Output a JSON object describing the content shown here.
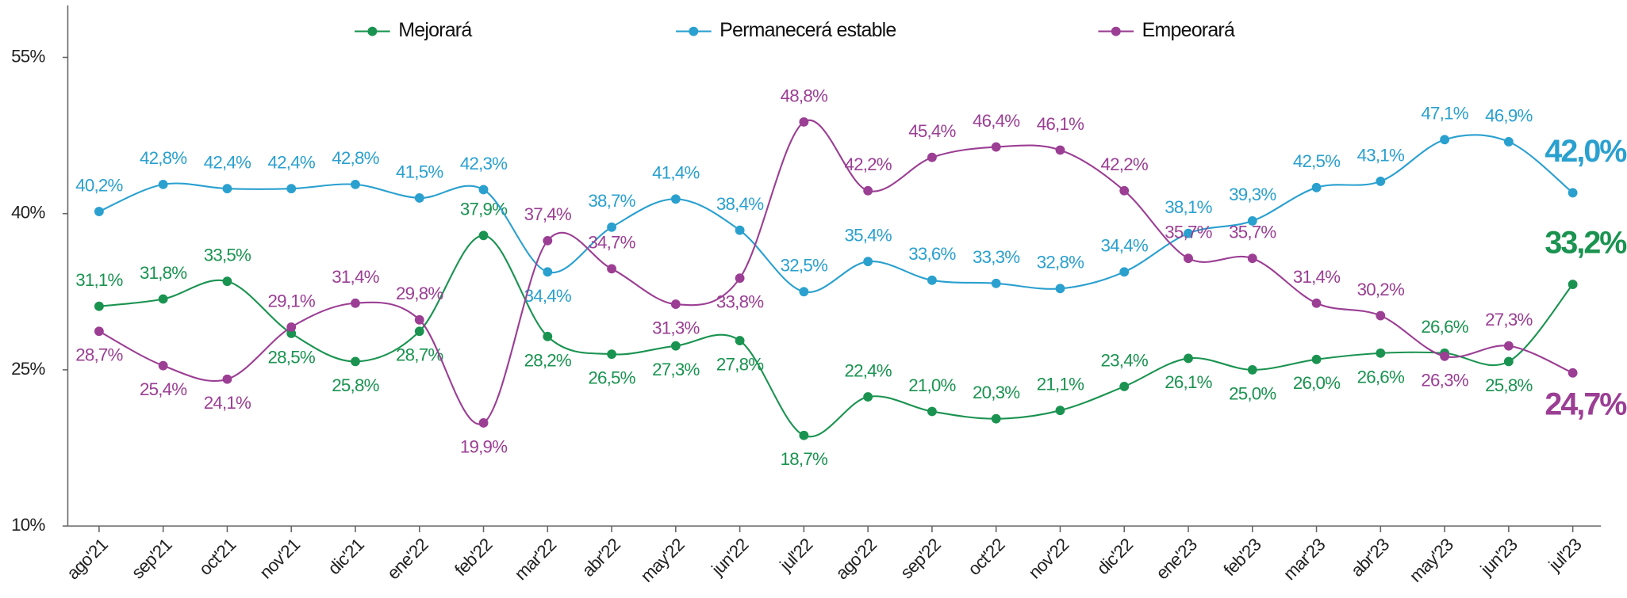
{
  "chart_data": {
    "type": "line",
    "categories": [
      "ago'21",
      "sep'21",
      "oct'21",
      "nov'21",
      "dic'21",
      "ene'22",
      "feb'22",
      "mar'22",
      "abr'22",
      "may'22",
      "jun'22",
      "jul'22",
      "ago'22",
      "sep'22",
      "oct'22",
      "nov'22",
      "dic'22",
      "ene'23",
      "feb'23",
      "mar'23",
      "abr'23",
      "may'23",
      "jun'23",
      "jul'23"
    ],
    "series": [
      {
        "name": "Mejorará",
        "color": "#1a9350",
        "values": [
          31.1,
          31.8,
          33.5,
          28.5,
          25.8,
          28.7,
          37.9,
          28.2,
          26.5,
          27.3,
          27.8,
          18.7,
          22.4,
          21.0,
          20.3,
          21.1,
          23.4,
          26.1,
          25.0,
          26.0,
          26.6,
          26.6,
          25.8,
          33.2
        ],
        "value_labels": [
          "31,1%",
          "31,8%",
          "33,5%",
          "28,5%",
          "25,8%",
          "28,7%",
          "37,9%",
          "28,2%",
          "26,5%",
          "27,3%",
          "27,8%",
          "18,7%",
          "22,4%",
          "21,0%",
          "20,3%",
          "21,1%",
          "23,4%",
          "26,1%",
          "25,0%",
          "26,0%",
          "26,6%",
          "26,6%",
          "25,8%",
          "33,2%"
        ]
      },
      {
        "name": "Permanecerá estable",
        "color": "#2aa0cf",
        "values": [
          40.2,
          42.8,
          42.4,
          42.4,
          42.8,
          41.5,
          42.3,
          34.4,
          38.7,
          41.4,
          38.4,
          32.5,
          35.4,
          33.6,
          33.3,
          32.8,
          34.4,
          38.1,
          39.3,
          42.5,
          43.1,
          47.1,
          46.9,
          42.0
        ],
        "value_labels": [
          "40,2%",
          "42,8%",
          "42,4%",
          "42,4%",
          "42,8%",
          "41,5%",
          "42,3%",
          "34,4%",
          "38,7%",
          "41,4%",
          "38,4%",
          "32,5%",
          "35,4%",
          "33,6%",
          "33,3%",
          "32,8%",
          "34,4%",
          "38,1%",
          "39,3%",
          "42,5%",
          "43,1%",
          "47,1%",
          "46,9%",
          "42,0%"
        ]
      },
      {
        "name": "Empeorará",
        "color": "#9b3e94",
        "values": [
          28.7,
          25.4,
          24.1,
          29.1,
          31.4,
          29.8,
          19.9,
          37.4,
          34.7,
          31.3,
          33.8,
          48.8,
          42.2,
          45.4,
          46.4,
          46.1,
          42.2,
          35.7,
          35.7,
          31.4,
          30.2,
          26.3,
          27.3,
          24.7
        ],
        "value_labels": [
          "28,7%",
          "25,4%",
          "24,1%",
          "29,1%",
          "31,4%",
          "29,8%",
          "19,9%",
          "37,4%",
          "34,7%",
          "31,3%",
          "33,8%",
          "48,8%",
          "42,2%",
          "45,4%",
          "46,4%",
          "46,1%",
          "42,2%",
          "35,7%",
          "35,7%",
          "31,4%",
          "30,2%",
          "26,3%",
          "27,3%",
          "24,7%"
        ]
      }
    ],
    "ylim": [
      10,
      60
    ],
    "yticks": [
      {
        "value": 10,
        "label": "10%"
      },
      {
        "value": 25,
        "label": "25%"
      },
      {
        "value": 40,
        "label": "40%"
      },
      {
        "value": 55,
        "label": "55%"
      }
    ],
    "legend": "top"
  }
}
